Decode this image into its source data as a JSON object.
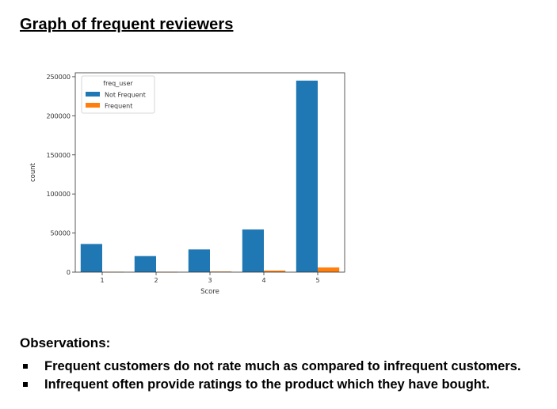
{
  "heading": "Graph of frequent reviewers",
  "observations": {
    "title": "Observations:",
    "items": [
      "Frequent customers do not rate much as compared to infrequent customers.",
      "Infrequent often provide ratings to the product which they have bought."
    ]
  },
  "colors": {
    "not_frequent": "#1f77b4",
    "frequent": "#ff7f0e"
  },
  "chart_data": {
    "type": "bar",
    "categories": [
      "1",
      "2",
      "3",
      "4",
      "5"
    ],
    "series": [
      {
        "name": "Not Frequent",
        "values": [
          36000,
          20500,
          29000,
          54500,
          245000
        ]
      },
      {
        "name": "Frequent",
        "values": [
          500,
          400,
          800,
          2000,
          6000
        ]
      }
    ],
    "xlabel": "Score",
    "ylabel": "count",
    "ylim": [
      0,
      255000
    ],
    "yticks": [
      0,
      50000,
      100000,
      150000,
      200000,
      250000
    ],
    "legend_title": "freq_user",
    "legend_position": "top-left",
    "grid": false
  }
}
